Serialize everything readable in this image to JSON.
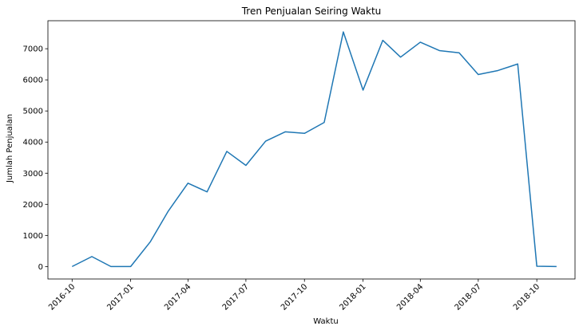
{
  "chart_data": {
    "type": "line",
    "title": "Tren Penjualan Seiring Waktu",
    "xlabel": "Waktu",
    "ylabel": "Jumlah Penjualan",
    "x_ticks": [
      "2016-10",
      "2017-01",
      "2017-04",
      "2017-07",
      "2017-10",
      "2018-01",
      "2018-04",
      "2018-07",
      "2018-10"
    ],
    "y_ticks": [
      0,
      1000,
      2000,
      3000,
      4000,
      5000,
      6000,
      7000
    ],
    "ylim": [
      -400,
      7900
    ],
    "xlim": [
      "2016-08-24",
      "2018-11-30"
    ],
    "grid": false,
    "series": [
      {
        "color": "#1f77b4",
        "x": [
          "2016-10",
          "2016-11",
          "2016-12",
          "2017-01",
          "2017-02",
          "2017-03",
          "2017-04",
          "2017-05",
          "2017-06",
          "2017-07",
          "2017-08",
          "2017-09",
          "2017-10",
          "2017-11",
          "2017-12",
          "2018-01",
          "2018-02",
          "2018-03",
          "2018-04",
          "2018-05",
          "2018-06",
          "2018-07",
          "2018-08",
          "2018-09",
          "2018-10",
          "2018-11"
        ],
        "y": [
          0,
          320,
          0,
          0,
          800,
          1780,
          2680,
          2400,
          3700,
          3250,
          4030,
          4330,
          4280,
          4630,
          7540,
          5670,
          7270,
          6730,
          7210,
          6940,
          6870,
          6170,
          6300,
          6510,
          10,
          0
        ]
      }
    ]
  }
}
